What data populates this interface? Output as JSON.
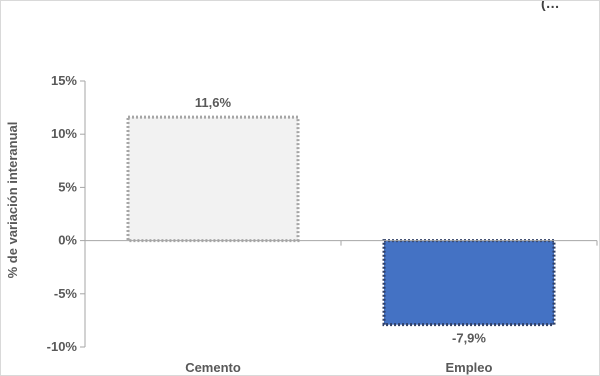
{
  "header_fragment": "(…",
  "chart_data": {
    "type": "bar",
    "categories": [
      "Cemento",
      "Empleo"
    ],
    "values": [
      11.6,
      -7.9
    ],
    "data_labels": [
      "11,6%",
      "-7,9%"
    ],
    "title": "",
    "xlabel": "",
    "ylabel": "% de variación interanual",
    "ylim": [
      -10,
      15
    ],
    "yticks": [
      15,
      10,
      5,
      0,
      -5,
      -10
    ],
    "ytick_labels": [
      "15%",
      "10%",
      "5%",
      "0%",
      "-5%",
      "-10%"
    ],
    "grid": false,
    "colors": {
      "cemento_fill": "#f2f2f2",
      "cemento_border": "#a6a6a6",
      "empleo_fill": "#4472c4",
      "empleo_border": "#2f3f66",
      "axis": "#a6a6a6",
      "text": "#595959"
    }
  }
}
